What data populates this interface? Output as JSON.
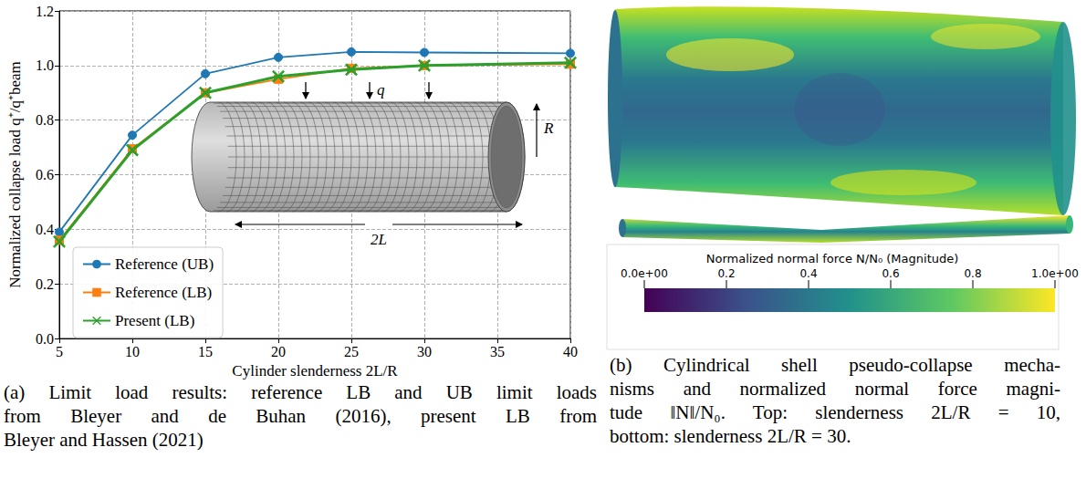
{
  "chart_data": {
    "type": "line",
    "xlabel": "Cylinder slenderness 2L/R",
    "ylabel": "Normalized collapse load q⁺/q⁺beam",
    "x": [
      5,
      10,
      15,
      20,
      25,
      30,
      40
    ],
    "xlim": [
      5,
      40
    ],
    "xticks": [
      5,
      10,
      15,
      20,
      25,
      30,
      35,
      40
    ],
    "ylim": [
      0,
      1.2
    ],
    "yticks": [
      {
        "value": 0,
        "label": "0.0"
      },
      0.2,
      0.4,
      0.6,
      0.8,
      {
        "value": 1,
        "label": "1.0"
      },
      1.2
    ],
    "grid": true,
    "legend": "lower left",
    "series": [
      {
        "name": "Reference (UB)",
        "color": "#1f77b4",
        "marker": "circle",
        "line_style": "solid",
        "values": [
          0.39,
          0.745,
          0.97,
          1.03,
          1.05,
          1.048,
          1.045
        ]
      },
      {
        "name": "Reference (LB)",
        "color": "#ff7f0e",
        "marker": "square",
        "line_style": "solid",
        "values": [
          0.36,
          0.695,
          0.9,
          0.95,
          0.99,
          1.0,
          1.005
        ]
      },
      {
        "name": "Present (LB)",
        "color": "#2ca02c",
        "marker": "x",
        "line_style": "solid",
        "values": [
          0.355,
          0.69,
          0.9,
          0.96,
          0.985,
          1.0,
          1.01
        ]
      }
    ],
    "annotations": {
      "load": "q",
      "length": "2L",
      "radius": "R"
    }
  },
  "panel_b": {
    "colorbar": {
      "title": "Normalized normal force N/N₀ (Magnitude)",
      "range": [
        0,
        1
      ],
      "ticks": [
        {
          "value": 0,
          "label": "0.0e+00"
        },
        0.2,
        0.4,
        0.6,
        0.8,
        {
          "value": 1,
          "label": "1.0e+00"
        }
      ]
    }
  },
  "captions": {
    "a": [
      "(a) Limit load results: reference LB and UB limit loads",
      "from Bleyer and de Buhan (2016), present LB from",
      "Bleyer and Hassen (2021)"
    ],
    "b": [
      "(b) Cylindrical shell pseudo-collapse mecha-",
      "nisms and normalized normal force magni-",
      "tude ‖N‖/N₀. Top: slenderness 2L/R = 10,",
      "bottom: slenderness 2L/R = 30."
    ]
  }
}
